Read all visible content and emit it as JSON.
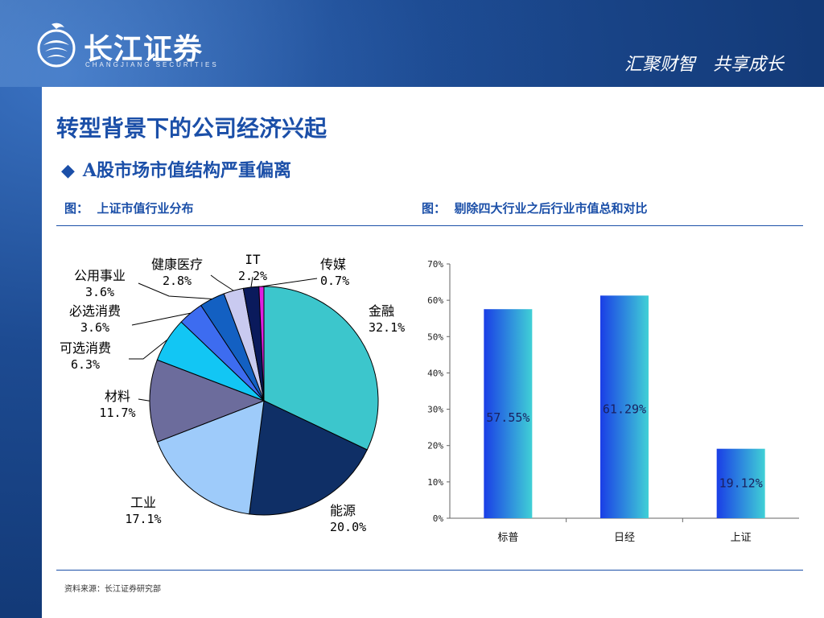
{
  "header": {
    "logo_cn": "长江证券",
    "logo_en": "CHANGJIANG SECURITIES",
    "slogan": "汇聚财智　共享成长"
  },
  "page": {
    "title": "转型背景下的公司经济兴起",
    "subtitle": "A股市场市值结构严重偏离",
    "left_caption": "图：  上证市值行业分布",
    "right_caption": "图：  剔除四大行业之后行业市值总和对比",
    "source": "资料来源：长江证券研究部"
  },
  "chart_data": [
    {
      "type": "pie",
      "slices": [
        {
          "name": "金融",
          "label": "32.1%",
          "value": 32.1,
          "color": "#3cc6cc"
        },
        {
          "name": "能源",
          "label": "20.0%",
          "value": 20.0,
          "color": "#0f2f66"
        },
        {
          "name": "工业",
          "label": "17.1%",
          "value": 17.1,
          "color": "#9ecbfa"
        },
        {
          "name": "材料",
          "label": "11.7%",
          "value": 11.7,
          "color": "#6c6c9c"
        },
        {
          "name": "可选消费",
          "label": "6.3%",
          "value": 6.3,
          "color": "#12c6f4"
        },
        {
          "name": "必选消费",
          "label": "3.6%",
          "value": 3.6,
          "color": "#3d6cf0"
        },
        {
          "name": "公用事业",
          "label": "3.6%",
          "value": 3.6,
          "color": "#1360c2"
        },
        {
          "name": "健康医疗",
          "label": "2.8%",
          "value": 2.8,
          "color": "#c9caf0"
        },
        {
          "name": "IT",
          "label": "2.2%",
          "value": 2.2,
          "color": "#0a1a5c"
        },
        {
          "name": "传媒",
          "label": "0.7%",
          "value": 0.7,
          "color": "#e020e0"
        }
      ]
    },
    {
      "type": "bar",
      "categories": [
        "标普",
        "日经",
        "上证"
      ],
      "values": [
        57.55,
        61.29,
        19.12
      ],
      "data_labels": [
        "57.55%",
        "61.29%",
        "19.12%"
      ],
      "ylim": [
        0,
        70
      ],
      "yticks": [
        "0%",
        "10%",
        "20%",
        "30%",
        "40%",
        "50%",
        "60%",
        "70%"
      ],
      "bar_gradient": [
        "#1a3ee6",
        "#40d0d6"
      ]
    }
  ]
}
